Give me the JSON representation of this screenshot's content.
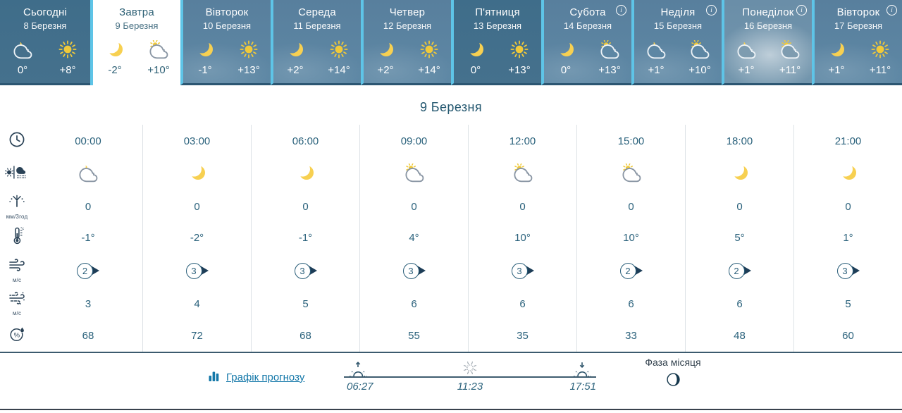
{
  "colors": {
    "accent_cyan": "#5ec4e7",
    "card_dark": "#44708c",
    "card_medium": "#5d87a4",
    "card_light": "#7e9cb0",
    "header_border": "#2c5672",
    "text_primary": "#2b627c",
    "title": "#23576f",
    "icon_navy": "#2a4256",
    "link_blue": "#1478a9",
    "rule_dark": "#3c5a6e",
    "rule_light": "#dde2e6",
    "sun_yellow": "#f0c93a",
    "moon_yellow": "#f7d051"
  },
  "header": {
    "days": [
      {
        "name": "Сьогодні",
        "date": "8 Березня",
        "night_icon": "cloud-moon",
        "day_icon": "sun",
        "temp_night": "0°",
        "temp_day": "+8°",
        "variant": "dark",
        "selected": false,
        "info": false
      },
      {
        "name": "Завтра",
        "date": "9 Березня",
        "night_icon": "moon",
        "day_icon": "cloud-sun",
        "temp_night": "-2°",
        "temp_day": "+10°",
        "variant": "selected",
        "selected": true,
        "info": false
      },
      {
        "name": "Вівторок",
        "date": "10 Березня",
        "night_icon": "moon",
        "day_icon": "sun",
        "temp_night": "-1°",
        "temp_day": "+13°",
        "variant": "medium",
        "selected": false,
        "info": false
      },
      {
        "name": "Середа",
        "date": "11 Березня",
        "night_icon": "moon",
        "day_icon": "sun",
        "temp_night": "+2°",
        "temp_day": "+14°",
        "variant": "medium",
        "selected": false,
        "info": false
      },
      {
        "name": "Четвер",
        "date": "12 Березня",
        "night_icon": "moon",
        "day_icon": "sun",
        "temp_night": "+2°",
        "temp_day": "+14°",
        "variant": "medium",
        "selected": false,
        "info": false
      },
      {
        "name": "П'ятниця",
        "date": "13 Березня",
        "night_icon": "moon",
        "day_icon": "sun",
        "temp_night": "0°",
        "temp_day": "+13°",
        "variant": "dark",
        "selected": false,
        "info": false
      },
      {
        "name": "Субота",
        "date": "14 Березня",
        "night_icon": "moon",
        "day_icon": "cloud-sun",
        "temp_night": "0°",
        "temp_day": "+13°",
        "variant": "medium",
        "selected": false,
        "info": true
      },
      {
        "name": "Неділя",
        "date": "15 Березня",
        "night_icon": "cloud-moon",
        "day_icon": "cloud-sun",
        "temp_night": "+1°",
        "temp_day": "+10°",
        "variant": "medium",
        "selected": false,
        "info": true
      },
      {
        "name": "Понеділок",
        "date": "16 Березня",
        "night_icon": "cloud-moon",
        "day_icon": "cloud-sun",
        "temp_night": "+1°",
        "temp_day": "+11°",
        "variant": "light",
        "selected": false,
        "info": true
      },
      {
        "name": "Вівторок",
        "date": "17 Березня",
        "night_icon": "moon",
        "day_icon": "sun",
        "temp_night": "+1°",
        "temp_day": "+11°",
        "variant": "medium",
        "selected": false,
        "info": true
      }
    ]
  },
  "detail": {
    "title": "9 Березня",
    "row_units": {
      "precipitation": "мм/3год",
      "wind": "м/с",
      "gust": "м/с"
    },
    "columns": [
      {
        "time": "00:00",
        "icon": "cloud-moon",
        "precipitation": "0",
        "temperature": "-1°",
        "wind_speed": "2",
        "wind_dir": "right",
        "gust": "3",
        "humidity": "68"
      },
      {
        "time": "03:00",
        "icon": "moon",
        "precipitation": "0",
        "temperature": "-2°",
        "wind_speed": "3",
        "wind_dir": "right",
        "gust": "4",
        "humidity": "72"
      },
      {
        "time": "06:00",
        "icon": "moon",
        "precipitation": "0",
        "temperature": "-1°",
        "wind_speed": "3",
        "wind_dir": "right",
        "gust": "5",
        "humidity": "68"
      },
      {
        "time": "09:00",
        "icon": "cloud-sun",
        "precipitation": "0",
        "temperature": "4°",
        "wind_speed": "3",
        "wind_dir": "right",
        "gust": "6",
        "humidity": "55"
      },
      {
        "time": "12:00",
        "icon": "cloud-sun",
        "precipitation": "0",
        "temperature": "10°",
        "wind_speed": "3",
        "wind_dir": "right",
        "gust": "6",
        "humidity": "35"
      },
      {
        "time": "15:00",
        "icon": "cloud-sun",
        "precipitation": "0",
        "temperature": "10°",
        "wind_speed": "2",
        "wind_dir": "right",
        "gust": "6",
        "humidity": "33"
      },
      {
        "time": "18:00",
        "icon": "moon",
        "precipitation": "0",
        "temperature": "5°",
        "wind_speed": "2",
        "wind_dir": "right",
        "gust": "6",
        "humidity": "48"
      },
      {
        "time": "21:00",
        "icon": "moon",
        "precipitation": "0",
        "temperature": "1°",
        "wind_speed": "3",
        "wind_dir": "right",
        "gust": "5",
        "humidity": "60"
      }
    ]
  },
  "footer": {
    "chart_link": "Графік прогнозу",
    "sunrise": "06:27",
    "noon": "11:23",
    "sunset": "17:51",
    "moon_phase_label": "Фаза місяця"
  }
}
